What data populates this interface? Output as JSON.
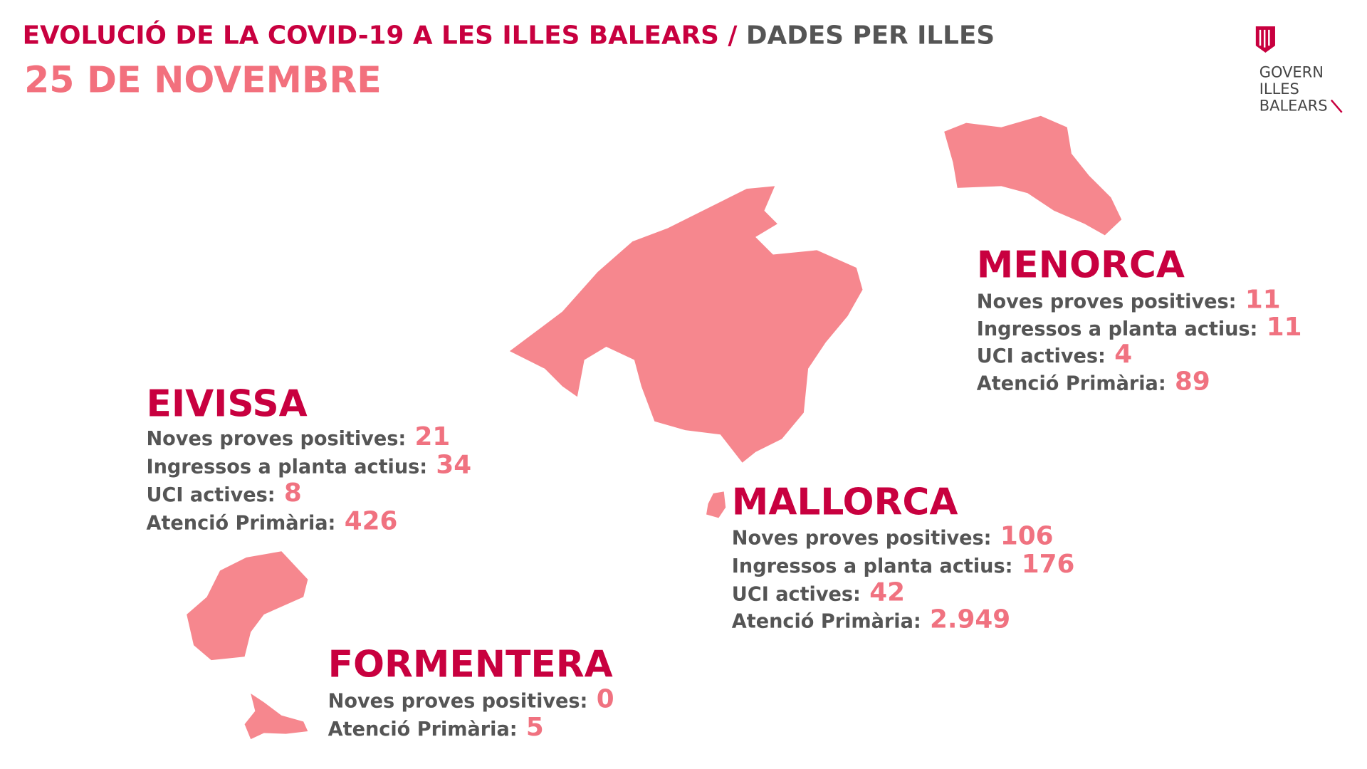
{
  "header": {
    "title": "EVOLUCIÓ DE LA COVID-19 A LES ILLES BALEARS",
    "separator": "/",
    "subtitle": "DADES PER ILLES",
    "date": "25 DE NOVEMBRE"
  },
  "logo": {
    "lines": [
      "GOVERN",
      "ILLES",
      "BALEARS"
    ]
  },
  "islands": [
    {
      "name": "MENORCA",
      "stats": [
        {
          "label": "Noves proves positives:",
          "value": "11"
        },
        {
          "label": "Ingressos a planta actius:",
          "value": "11"
        },
        {
          "label": "UCI actives:",
          "value": "4"
        },
        {
          "label": "Atenció Primària:",
          "value": "89"
        }
      ]
    },
    {
      "name": "EIVISSA",
      "stats": [
        {
          "label": "Noves proves positives:",
          "value": "21"
        },
        {
          "label": "Ingressos a planta actius:",
          "value": "34"
        },
        {
          "label": "UCI actives:",
          "value": "8"
        },
        {
          "label": "Atenció Primària:",
          "value": "426"
        }
      ]
    },
    {
      "name": "MALLORCA",
      "stats": [
        {
          "label": "Noves proves positives:",
          "value": "106"
        },
        {
          "label": "Ingressos a planta actius:",
          "value": "176"
        },
        {
          "label": "UCI actives:",
          "value": "42"
        },
        {
          "label": "Atenció Primària:",
          "value": "2.949"
        }
      ]
    },
    {
      "name": "FORMENTERA",
      "stats": [
        {
          "label": "Noves proves positives:",
          "value": "0"
        },
        {
          "label": "Atenció Primària:",
          "value": "5"
        }
      ]
    }
  ]
}
